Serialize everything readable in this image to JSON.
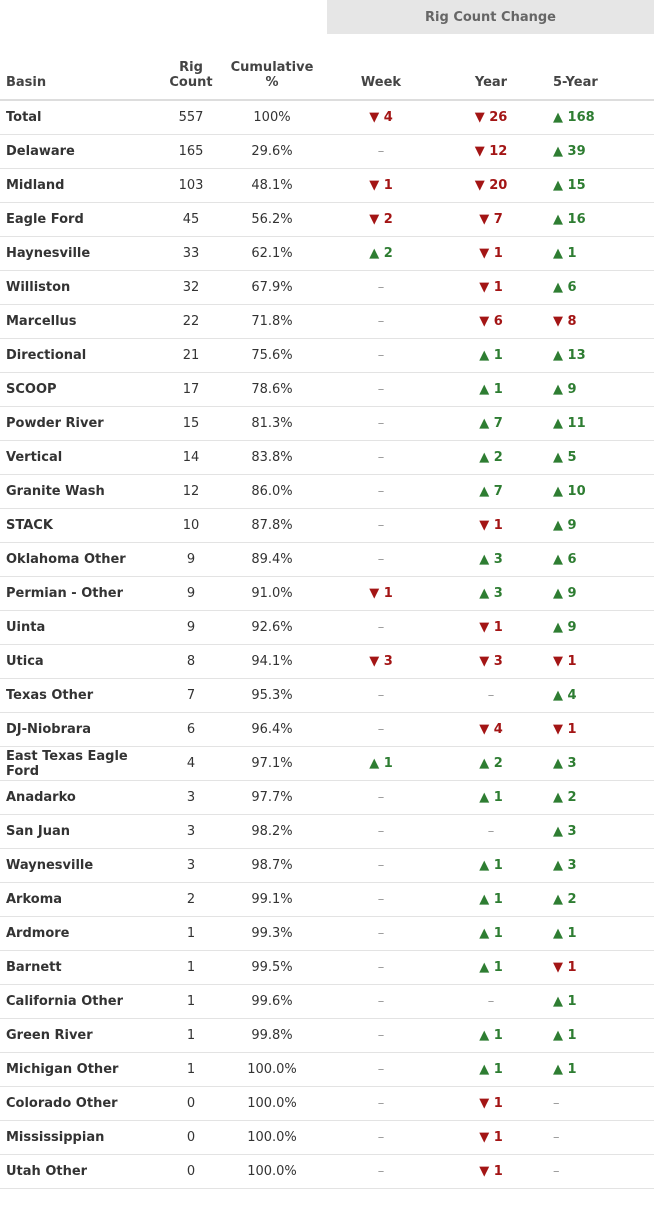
{
  "header": {
    "group": "Rig Count Change",
    "columns": [
      "Basin",
      "Rig Count",
      "Cumulative %",
      "Week",
      "Year",
      "5-Year"
    ]
  },
  "table": {
    "rows": [
      [
        "Total",
        557,
        "100%",
        "▼ 4",
        "▼ 26",
        "▲ 168"
      ],
      [
        "Delaware",
        165,
        "29.6%",
        "–",
        "▼ 12",
        "▲ 39"
      ],
      [
        "Midland",
        103,
        "48.1%",
        "▼ 1",
        "▼ 20",
        "▲ 15"
      ],
      [
        "Eagle Ford",
        45,
        "56.2%",
        "▼ 2",
        "▼ 7",
        "▲ 16"
      ],
      [
        "Haynesville",
        33,
        "62.1%",
        "▲ 2",
        "▼ 1",
        "▲ 1"
      ],
      [
        "Williston",
        32,
        "67.9%",
        "–",
        "▼ 1",
        "▲ 6"
      ],
      [
        "Marcellus",
        22,
        "71.8%",
        "–",
        "▼ 6",
        "▼ 8"
      ],
      [
        "Directional",
        21,
        "75.6%",
        "–",
        "▲ 1",
        "▲ 13"
      ],
      [
        "SCOOP",
        17,
        "78.6%",
        "–",
        "▲ 1",
        "▲ 9"
      ],
      [
        "Powder River",
        15,
        "81.3%",
        "–",
        "▲ 7",
        "▲ 11"
      ],
      [
        "Vertical",
        14,
        "83.8%",
        "–",
        "▲ 2",
        "▲ 5"
      ],
      [
        "Granite Wash",
        12,
        "86.0%",
        "–",
        "▲ 7",
        "▲ 10"
      ],
      [
        "STACK",
        10,
        "87.8%",
        "–",
        "▼ 1",
        "▲ 9"
      ],
      [
        "Oklahoma Other",
        9,
        "89.4%",
        "–",
        "▲ 3",
        "▲ 6"
      ],
      [
        "Permian - Other",
        9,
        "91.0%",
        "▼ 1",
        "▲ 3",
        "▲ 9"
      ],
      [
        "Uinta",
        9,
        "92.6%",
        "–",
        "▼ 1",
        "▲ 9"
      ],
      [
        "Utica",
        8,
        "94.1%",
        "▼ 3",
        "▼ 3",
        "▼ 1"
      ],
      [
        "Texas Other",
        7,
        "95.3%",
        "–",
        "–",
        "▲ 4"
      ],
      [
        "DJ-Niobrara",
        6,
        "96.4%",
        "–",
        "▼ 4",
        "▼ 1"
      ],
      [
        "East Texas Eagle Ford",
        4,
        "97.1%",
        "▲ 1",
        "▲ 2",
        "▲ 3"
      ],
      [
        "Anadarko",
        3,
        "97.7%",
        "–",
        "▲ 1",
        "▲ 2"
      ],
      [
        "San Juan",
        3,
        "98.2%",
        "–",
        "–",
        "▲ 3"
      ],
      [
        "Waynesville",
        3,
        "98.7%",
        "–",
        "▲ 1",
        "▲ 3"
      ],
      [
        "Arkoma",
        2,
        "99.1%",
        "–",
        "▲ 1",
        "▲ 2"
      ],
      [
        "Ardmore",
        1,
        "99.3%",
        "–",
        "▲ 1",
        "▲ 1"
      ],
      [
        "Barnett",
        1,
        "99.5%",
        "–",
        "▲ 1",
        "▼ 1"
      ],
      [
        "California Other",
        1,
        "99.6%",
        "–",
        "–",
        "▲ 1"
      ],
      [
        "Green River",
        1,
        "99.8%",
        "–",
        "▲ 1",
        "▲ 1"
      ],
      [
        "Michigan Other",
        1,
        "100.0%",
        "–",
        "▲ 1",
        "▲ 1"
      ],
      [
        "Colorado Other",
        0,
        "100.0%",
        "–",
        "▼ 1",
        "–"
      ],
      [
        "Mississippian",
        0,
        "100.0%",
        "–",
        "▼ 1",
        "–"
      ],
      [
        "Utah Other",
        0,
        "100.0%",
        "–",
        "▼ 1",
        "–"
      ]
    ]
  }
}
